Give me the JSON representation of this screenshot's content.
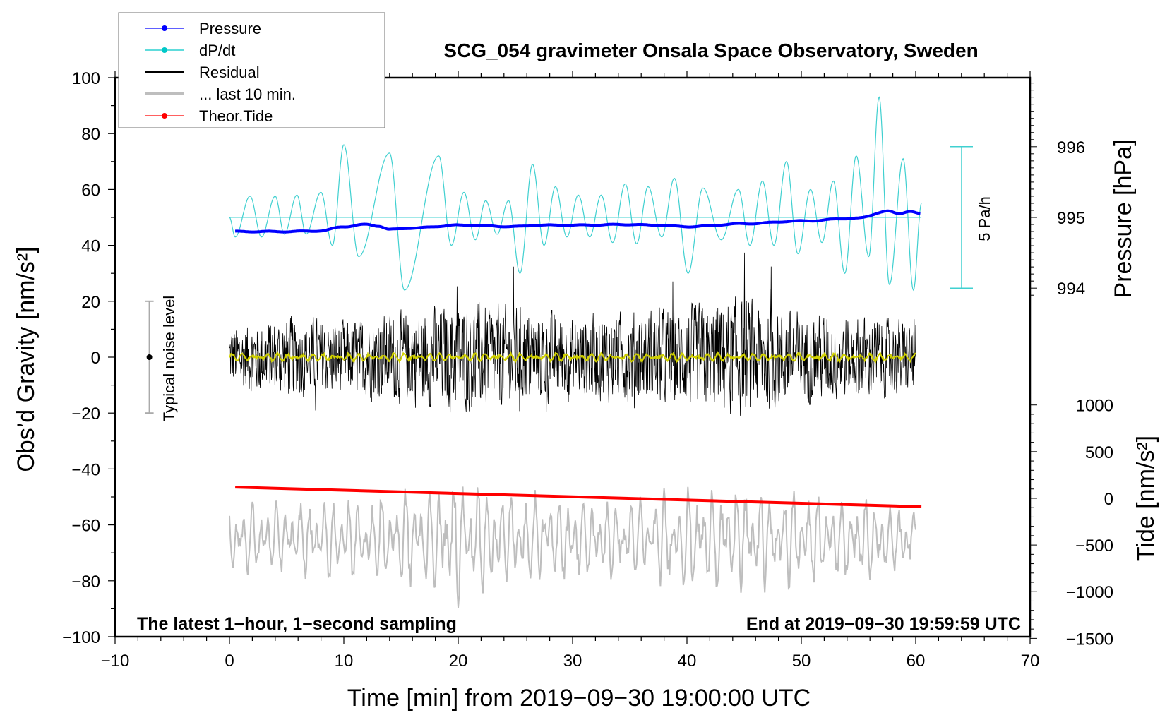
{
  "chart_data": {
    "type": "line",
    "title": "SCG_054 gravimeter Onsala Space Observatory, Sweden",
    "xlabel": "Time [min] from 2019−09−30 19:00:00 UTC",
    "ylabel": "Obs’d Gravity [nm/s²]",
    "ylabel_right_top": "Pressure [hPa]",
    "ylabel_right_bottom": "Tide [nm/s²]",
    "xlim": [
      -10,
      70
    ],
    "ylim": [
      -100,
      100
    ],
    "xticks": [
      "−10",
      "0",
      "10",
      "20",
      "30",
      "40",
      "50",
      "60",
      "70"
    ],
    "xtick_values": [
      -10,
      0,
      10,
      20,
      30,
      40,
      50,
      60,
      70
    ],
    "yticks": [
      "100",
      "80",
      "60",
      "40",
      "20",
      "0",
      "−20",
      "−40",
      "−60",
      "−80",
      "−100"
    ],
    "ytick_values": [
      100,
      80,
      60,
      40,
      20,
      0,
      -20,
      -40,
      -60,
      -80,
      -100
    ],
    "pressure_ticks": [
      "996",
      "995",
      "994"
    ],
    "pressure_tick_values": [
      996,
      995,
      994
    ],
    "tide_ticks": [
      "1000",
      "500",
      "0",
      "−500",
      "−1000",
      "−1500"
    ],
    "tide_tick_values": [
      1000,
      500,
      0,
      -500,
      -1000,
      -1500
    ],
    "annotation_left": "The latest 1−hour, 1−second sampling",
    "annotation_right": "End at 2019−09−30 19:59:59 UTC",
    "noise_label": "Typical noise level",
    "noise_level": {
      "x": -7,
      "center": 0,
      "halfwidth": 20
    },
    "dpdt_scale_label": "5 Pa/h",
    "legend": {
      "placement": "top-left",
      "entries": [
        {
          "label": "Pressure",
          "color": "#0000ff",
          "marker": true
        },
        {
          "label": "dP/dt",
          "color": "#00c8c8",
          "marker": true
        },
        {
          "label": "Residual",
          "color": "#000000",
          "marker": false
        },
        {
          "label": "... last 10 min.",
          "color": "#bebebe",
          "marker": false
        },
        {
          "label": "Theor.Tide",
          "color": "#ff0000",
          "marker": true
        }
      ]
    },
    "series": [
      {
        "name": "Pressure",
        "unit": "hPa",
        "color": "#0000ff",
        "t": [
          0.5,
          5,
          8,
          10,
          12,
          13,
          14,
          16,
          20,
          25,
          27,
          30,
          35,
          37,
          40,
          45,
          50,
          55,
          57.5,
          58.5,
          59.5,
          60.5
        ],
        "values": [
          994.8,
          994.8,
          994.81,
          994.87,
          994.9,
          994.88,
          994.83,
          994.85,
          994.89,
          994.87,
          994.89,
          994.89,
          994.9,
          994.89,
          994.87,
          994.91,
          994.95,
          994.99,
          995.09,
          995.05,
          995.09,
          995.05
        ]
      },
      {
        "name": "dP/dt",
        "unit": "left-axis units (baseline 50)",
        "color": "#40d0d0",
        "t": [
          0,
          0.5,
          1.8,
          2.8,
          4.0,
          4.8,
          5.9,
          6.7,
          8.0,
          9.0,
          10.0,
          11.3,
          14.0,
          15.3,
          18.3,
          19.4,
          20.5,
          21.5,
          22.4,
          23.4,
          24.4,
          25.4,
          26.5,
          27.5,
          28.5,
          29.5,
          30.5,
          31.5,
          32.5,
          33.5,
          34.6,
          35.6,
          36.6,
          37.8,
          38.9,
          40.1,
          41.4,
          43.0,
          44.5,
          45.5,
          46.6,
          47.6,
          48.7,
          49.7,
          50.8,
          51.8,
          52.8,
          53.8,
          54.8,
          55.9,
          56.8,
          57.7,
          58.9,
          59.8,
          60.5
        ],
        "values": [
          50,
          43,
          57.6,
          43,
          57.6,
          44,
          58,
          44,
          59,
          40,
          76,
          36,
          73,
          24,
          72,
          40,
          59,
          42,
          56,
          44,
          56,
          30,
          69,
          40,
          61,
          43,
          58,
          43,
          58,
          41,
          62,
          40.6,
          61,
          43,
          64,
          30,
          60.5,
          42,
          60,
          40,
          63,
          40,
          70,
          37,
          60,
          41,
          63,
          30,
          72,
          36,
          93,
          26,
          71,
          24,
          55
        ]
      },
      {
        "name": "Residual",
        "unit": "nm/s²",
        "color": "#000000",
        "envelope_per_5min": [
          14,
          18,
          16,
          20,
          24,
          22,
          18,
          20,
          22,
          26,
          20,
          18,
          16
        ]
      },
      {
        "name": "... last 10 min.",
        "unit": "nm/s²",
        "color": "#bebebe",
        "center": -65,
        "envelope_per_5min": [
          10,
          10,
          12,
          14,
          18,
          14,
          12,
          12,
          14,
          16,
          14,
          12,
          10
        ]
      },
      {
        "name": "Theor.Tide",
        "unit": "nm/s²",
        "color": "#ff0000",
        "t": [
          0.5,
          60.5
        ],
        "values": [
          120,
          -90
        ]
      }
    ]
  }
}
